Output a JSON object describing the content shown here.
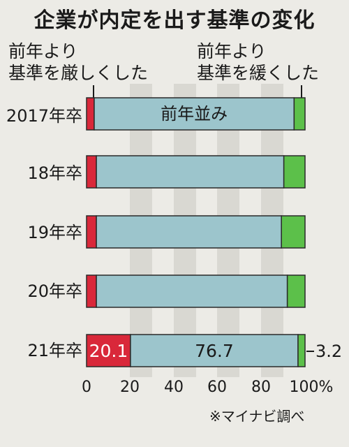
{
  "chart_data": {
    "type": "bar",
    "stacked": true,
    "orientation": "horizontal",
    "title": "企業が内定を出す基準の変化",
    "categories": [
      "2017年卒",
      "18年卒",
      "19年卒",
      "20年卒",
      "21年卒"
    ],
    "series": [
      {
        "name": "前年より基準を厳しくした",
        "values": [
          3.5,
          4.5,
          4.5,
          4.5,
          20.1
        ],
        "color": "#d9283a"
      },
      {
        "name": "前年並み",
        "values": [
          91.5,
          85.8,
          84.7,
          87.4,
          76.7
        ],
        "color": "#9cc5cc"
      },
      {
        "name": "前年より基準を緩くした",
        "values": [
          5.0,
          9.7,
          10.8,
          8.1,
          3.2
        ],
        "color": "#5cc04a"
      }
    ],
    "data_labels": {
      "bar0_middle": "前年並み",
      "bar4": [
        "20.1",
        "76.7",
        "3.2"
      ]
    },
    "xticks": [
      "0",
      "20",
      "40",
      "60",
      "80",
      "100%"
    ],
    "xlim": [
      0,
      100
    ],
    "legend_left": [
      "前年より",
      "基準を厳しくした"
    ],
    "legend_right": [
      "前年より",
      "基準を緩くした"
    ],
    "source": "※マイナビ調べ",
    "grid": "vertical bands"
  }
}
